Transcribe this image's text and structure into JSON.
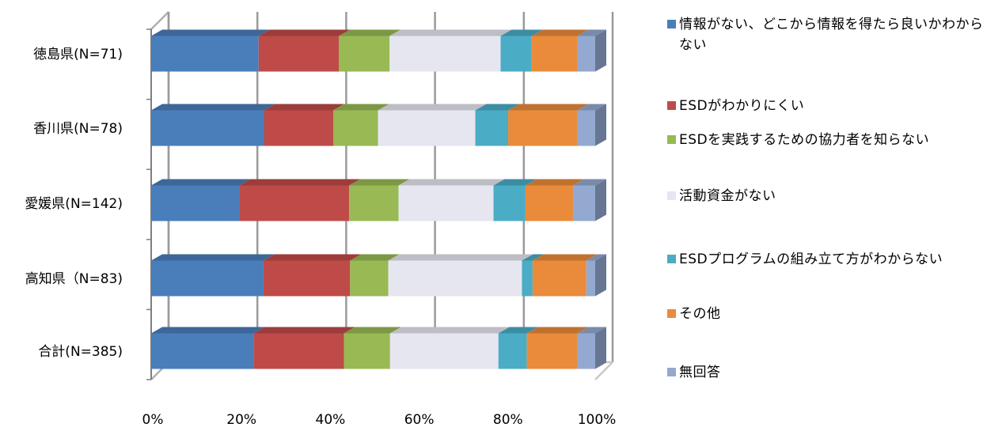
{
  "chart_data": {
    "type": "bar",
    "orientation": "horizontal",
    "stacked": "percent",
    "style": "3d",
    "categories": [
      "徳島県(N=71)",
      "香川県(N=78)",
      "愛媛県(N=142)",
      "高知県（N=83)",
      "合計(N=385)"
    ],
    "xticks": [
      "0%",
      "20%",
      "40%",
      "60%",
      "80%",
      "100%"
    ],
    "xlim": [
      0,
      100
    ],
    "grid": true,
    "legend_position": "right",
    "series": [
      {
        "name": "情報がない、どこから情報を得たら良いかわからない",
        "color": "#4A7EBB",
        "values": [
          24.2,
          25.4,
          19.8,
          25.3,
          23.1
        ]
      },
      {
        "name": "ESDがわかりにくい",
        "color": "#BE4B48",
        "values": [
          18.1,
          15.6,
          24.8,
          19.5,
          20.3
        ]
      },
      {
        "name": "ESDを実践するための協力者を知らない",
        "color": "#98B954",
        "values": [
          11.4,
          10.1,
          11.1,
          8.6,
          10.4
        ]
      },
      {
        "name": "活動資金がない",
        "color": "#E6E6F0",
        "values": [
          25.0,
          21.9,
          21.4,
          30.1,
          24.4
        ]
      },
      {
        "name": "ESDプログラムの組み立て方がわからない",
        "color": "#4BACC6",
        "values": [
          7.0,
          7.4,
          7.2,
          2.4,
          6.4
        ]
      },
      {
        "name": "その他",
        "color": "#E98B3A",
        "values": [
          10.3,
          15.6,
          10.7,
          12.1,
          11.4
        ]
      },
      {
        "name": "無回答",
        "color": "#93A9D0",
        "values": [
          4.0,
          4.0,
          5.0,
          2.0,
          4.0
        ]
      }
    ]
  }
}
